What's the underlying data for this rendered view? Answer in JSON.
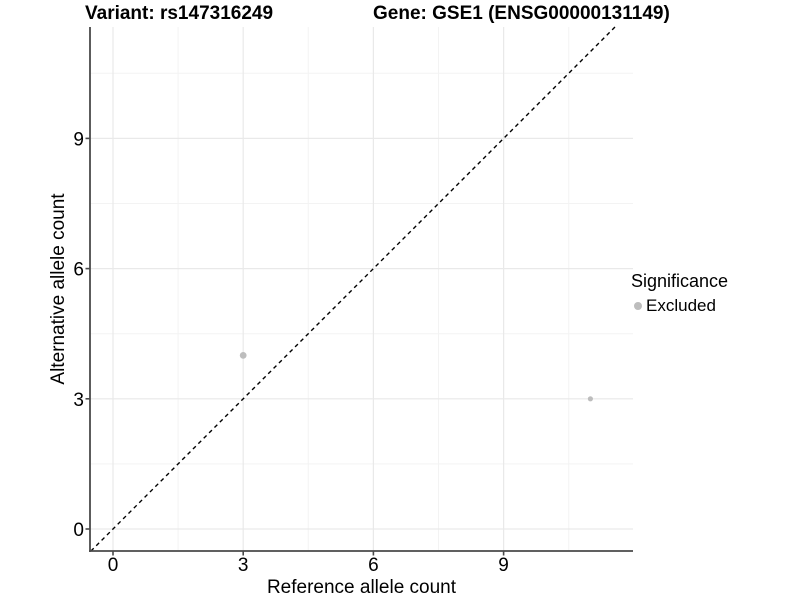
{
  "titles": {
    "variant": "Variant: rs147316249",
    "gene": "Gene: GSE1 (ENSG00000131149)"
  },
  "axes": {
    "x": {
      "label": "Reference allele count"
    },
    "y": {
      "label": "Alternative allele count"
    }
  },
  "legend": {
    "title": "Significance",
    "items": [
      {
        "label": "Excluded",
        "color": "#bdbdbd"
      }
    ]
  },
  "colors": {
    "axis_line": "#4a4a4a",
    "major_grid": "#e9e9e9",
    "minor_grid": "#f3f3f3",
    "point": "#bdbdbd",
    "reference_line": "#000000"
  },
  "chart_data": {
    "type": "scatter",
    "title": "Variant: rs147316249   Gene: GSE1 (ENSG00000131149)",
    "xlabel": "Reference allele count",
    "ylabel": "Alternative allele count",
    "xlim": [
      -0.53,
      11.98
    ],
    "ylim": [
      -0.51,
      11.57
    ],
    "x_ticks": [
      0,
      3,
      6,
      9
    ],
    "y_ticks": [
      0,
      3,
      6,
      9
    ],
    "x_minor": [
      1.5,
      4.5,
      7.5,
      10.5
    ],
    "y_minor": [
      1.5,
      4.5,
      7.5,
      10.5
    ],
    "grid": "major+minor",
    "legend_position": "right",
    "series": [
      {
        "name": "Excluded",
        "color": "#bdbdbd",
        "points": [
          {
            "x": 3,
            "y": 4,
            "r": 3.4
          },
          {
            "x": 11,
            "y": 3,
            "r": 2.6
          }
        ]
      }
    ],
    "reference_line": {
      "type": "identity",
      "equation": "y = x",
      "style": "dashed",
      "color": "#000000"
    }
  }
}
